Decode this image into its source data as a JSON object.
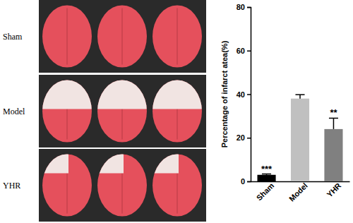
{
  "image_panel": {
    "row_labels": [
      "Sham",
      "Model",
      "YHR"
    ]
  },
  "chart_data": {
    "type": "bar",
    "y_label": "Percentage of infarct atea(%)",
    "categories": [
      "Sham",
      "Model",
      "YHR"
    ],
    "values": [
      3,
      38,
      24
    ],
    "errors": [
      0.4,
      1.8,
      5
    ],
    "colors": [
      "#000000",
      "#c0c0c0",
      "#808080"
    ],
    "ylim": [
      0,
      80
    ],
    "yticks": [
      0,
      20,
      40,
      60,
      80
    ],
    "annotations": [
      {
        "text": "***",
        "x": "Sham"
      },
      {
        "text": "**",
        "x": "YHR"
      }
    ]
  }
}
